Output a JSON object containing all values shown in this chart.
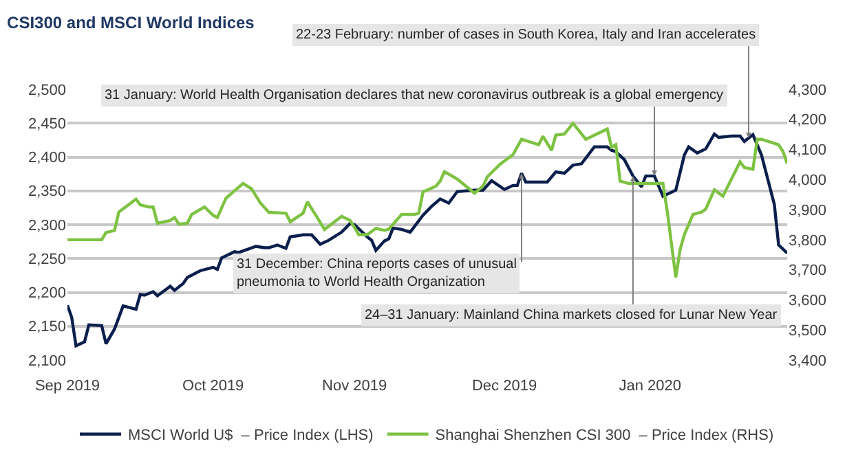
{
  "chart_data": {
    "type": "line",
    "title": "CSI300 and MSCI World Indices",
    "xticks": [
      {
        "value": "2019-09-16",
        "label": "Sep 2019"
      },
      {
        "value": "2019-10-20",
        "label": "Oct 2019"
      },
      {
        "value": "2019-11-22",
        "label": "Nov 2019"
      },
      {
        "value": "2019-12-27",
        "label": "Dec 2019"
      },
      {
        "value": "2020-01-30",
        "label": "Jan 2020"
      }
    ],
    "xlim": [
      "2019-09-16",
      "2020-03-02"
    ],
    "ylim": [
      2100,
      2500
    ],
    "yticks": [
      {
        "value": 2100,
        "label": "2,100"
      },
      {
        "value": 2150,
        "label": "2,150"
      },
      {
        "value": 2200,
        "label": "2,200"
      },
      {
        "value": 2250,
        "label": "2,250"
      },
      {
        "value": 2300,
        "label": "2,300"
      },
      {
        "value": 2350,
        "label": "2,350"
      },
      {
        "value": 2400,
        "label": "2,400"
      },
      {
        "value": 2450,
        "label": "2,450"
      },
      {
        "value": 2500,
        "label": "2,500"
      }
    ],
    "y2lim": [
      3400,
      4300
    ],
    "y2ticks": [
      {
        "value": 3400,
        "label": "3,400"
      },
      {
        "value": 3500,
        "label": "3,500"
      },
      {
        "value": 3600,
        "label": "3,600"
      },
      {
        "value": 3700,
        "label": "3,700"
      },
      {
        "value": 3800,
        "label": "3,800"
      },
      {
        "value": 3900,
        "label": "3,900"
      },
      {
        "value": 4000,
        "label": "4,000"
      },
      {
        "value": 4100,
        "label": "4,100"
      },
      {
        "value": 4200,
        "label": "4,200"
      },
      {
        "value": 4300,
        "label": "4,300"
      }
    ],
    "grid": "y",
    "legend": "bottom",
    "line_style": "solid",
    "marker": "none",
    "series": [
      {
        "name": "MSCI World U$  – Price Index (LHS)",
        "color": "#0b1f4d",
        "axis": "y",
        "x": [
          "2019-09-16",
          "2019-09-17",
          "2019-09-18",
          "2019-09-20",
          "2019-09-21",
          "2019-09-24",
          "2019-09-25",
          "2019-09-27",
          "2019-09-29",
          "2019-10-02",
          "2019-10-03",
          "2019-10-04",
          "2019-10-06",
          "2019-10-07",
          "2019-10-10",
          "2019-10-11",
          "2019-10-13",
          "2019-10-14",
          "2019-10-17",
          "2019-10-20",
          "2019-10-21",
          "2019-10-22",
          "2019-10-25",
          "2019-10-26",
          "2019-10-30",
          "2019-11-01",
          "2019-11-02",
          "2019-11-04",
          "2019-11-06",
          "2019-11-07",
          "2019-11-10",
          "2019-11-12",
          "2019-11-14",
          "2019-11-16",
          "2019-11-19",
          "2019-11-21",
          "2019-11-22",
          "2019-11-25",
          "2019-11-26",
          "2019-11-27",
          "2019-11-29",
          "2019-11-30",
          "2019-12-01",
          "2019-12-03",
          "2019-12-05",
          "2019-12-08",
          "2019-12-10",
          "2019-12-12",
          "2019-12-14",
          "2019-12-16",
          "2019-12-20",
          "2019-12-22",
          "2019-12-24",
          "2019-12-27",
          "2019-12-29",
          "2019-12-30",
          "2019-12-31",
          "2020-01-01",
          "2020-01-05",
          "2020-01-06",
          "2020-01-08",
          "2020-01-10",
          "2020-01-12",
          "2020-01-14",
          "2020-01-17",
          "2020-01-20",
          "2020-01-21",
          "2020-01-22",
          "2020-01-24",
          "2020-01-26",
          "2020-01-28",
          "2020-01-29",
          "2020-01-31",
          "2020-02-02",
          "2020-02-05",
          "2020-02-07",
          "2020-02-08",
          "2020-02-10",
          "2020-02-12",
          "2020-02-14",
          "2020-02-15",
          "2020-02-18",
          "2020-02-20",
          "2020-02-21",
          "2020-02-23",
          "2020-02-25",
          "2020-02-28",
          "2020-02-29",
          "2020-03-02"
        ],
        "values": [
          2181,
          2163,
          2121,
          2127,
          2152,
          2151,
          2124,
          2146,
          2180,
          2175,
          2197,
          2196,
          2201,
          2195,
          2209,
          2203,
          2213,
          2222,
          2232,
          2237,
          2234,
          2251,
          2260,
          2259,
          2268,
          2266,
          2266,
          2270,
          2265,
          2282,
          2285,
          2285,
          2271,
          2277,
          2289,
          2302,
          2300,
          2282,
          2277,
          2262,
          2276,
          2279,
          2295,
          2293,
          2289,
          2314,
          2327,
          2338,
          2332,
          2349,
          2351,
          2351,
          2365,
          2352,
          2358,
          2358,
          2376,
          2363,
          2363,
          2363,
          2378,
          2376,
          2388,
          2390,
          2415,
          2415,
          2410,
          2408,
          2396,
          2372,
          2356,
          2372,
          2372,
          2342,
          2351,
          2403,
          2415,
          2406,
          2412,
          2434,
          2429,
          2431,
          2431,
          2423,
          2433,
          2403,
          2330,
          2270,
          2258
        ]
      },
      {
        "name": "Shanghai Shenzhen CSI 300  – Price Index (RHS)",
        "color": "#7dc242",
        "axis": "y2",
        "x": [
          "2019-09-16",
          "2019-09-24",
          "2019-09-25",
          "2019-09-27",
          "2019-09-28",
          "2019-10-02",
          "2019-10-03",
          "2019-10-05",
          "2019-10-06",
          "2019-10-07",
          "2019-10-10",
          "2019-10-11",
          "2019-10-12",
          "2019-10-14",
          "2019-10-15",
          "2019-10-18",
          "2019-10-20",
          "2019-10-21",
          "2019-10-23",
          "2019-10-25",
          "2019-10-27",
          "2019-10-29",
          "2019-10-31",
          "2019-11-02",
          "2019-11-06",
          "2019-11-07",
          "2019-11-08",
          "2019-11-10",
          "2019-11-11",
          "2019-11-13",
          "2019-11-15",
          "2019-11-16",
          "2019-11-19",
          "2019-11-21",
          "2019-11-23",
          "2019-11-25",
          "2019-11-27",
          "2019-11-29",
          "2019-11-30",
          "2019-12-03",
          "2019-12-06",
          "2019-12-07",
          "2019-12-08",
          "2019-12-11",
          "2019-12-12",
          "2019-12-13",
          "2019-12-16",
          "2019-12-20",
          "2019-12-22",
          "2019-12-23",
          "2019-12-26",
          "2019-12-29",
          "2019-12-31",
          "2020-01-04",
          "2020-01-05",
          "2020-01-07",
          "2020-01-08",
          "2020-01-10",
          "2020-01-12",
          "2020-01-15",
          "2020-01-20",
          "2020-01-21",
          "2020-01-22",
          "2020-01-23",
          "2020-01-25",
          "2020-01-28",
          "2020-02-02",
          "2020-02-03",
          "2020-02-05",
          "2020-02-06",
          "2020-02-07",
          "2020-02-09",
          "2020-02-11",
          "2020-02-12",
          "2020-02-14",
          "2020-02-16",
          "2020-02-20",
          "2020-02-21",
          "2020-02-23",
          "2020-02-24",
          "2020-02-25",
          "2020-02-29",
          "2020-03-01",
          "2020-03-02"
        ],
        "values": [
          3800,
          3800,
          3824,
          3831,
          3892,
          3935,
          3916,
          3909,
          3909,
          3855,
          3864,
          3874,
          3852,
          3855,
          3884,
          3909,
          3881,
          3874,
          3938,
          3963,
          3987,
          3969,
          3923,
          3891,
          3888,
          3859,
          3869,
          3888,
          3926,
          3881,
          3834,
          3845,
          3878,
          3864,
          3817,
          3817,
          3838,
          3831,
          3835,
          3884,
          3884,
          3888,
          3959,
          3978,
          3995,
          4026,
          4002,
          3955,
          3978,
          4009,
          4051,
          4083,
          4134,
          4116,
          4144,
          4097,
          4148,
          4151,
          4187,
          4134,
          4168,
          4108,
          4116,
          3995,
          3987,
          3987,
          3987,
          3895,
          3675,
          3767,
          3817,
          3884,
          3892,
          3902,
          3966,
          3945,
          4059,
          4040,
          4034,
          4134,
          4134,
          4116,
          4094,
          4054
        ]
      }
    ],
    "annotations": [
      {
        "text": "22-23 February: number of cases in South Korea, Italy and Iran accelerates",
        "x": "2020-02-22",
        "y": 2428
      },
      {
        "text": "31 January: World Health Organisation declares that new coronavirus outbreak is a global emergency",
        "x": "2020-01-31",
        "y": 2372
      },
      {
        "text": "31 December: China reports cases of unusual\npneumonia to World Health Organization",
        "x": "2019-12-31",
        "y": 2376
      },
      {
        "text": "24–31 January: Mainland China markets closed for Lunar New Year",
        "x": "2020-01-26",
        "y": 2372
      }
    ]
  }
}
